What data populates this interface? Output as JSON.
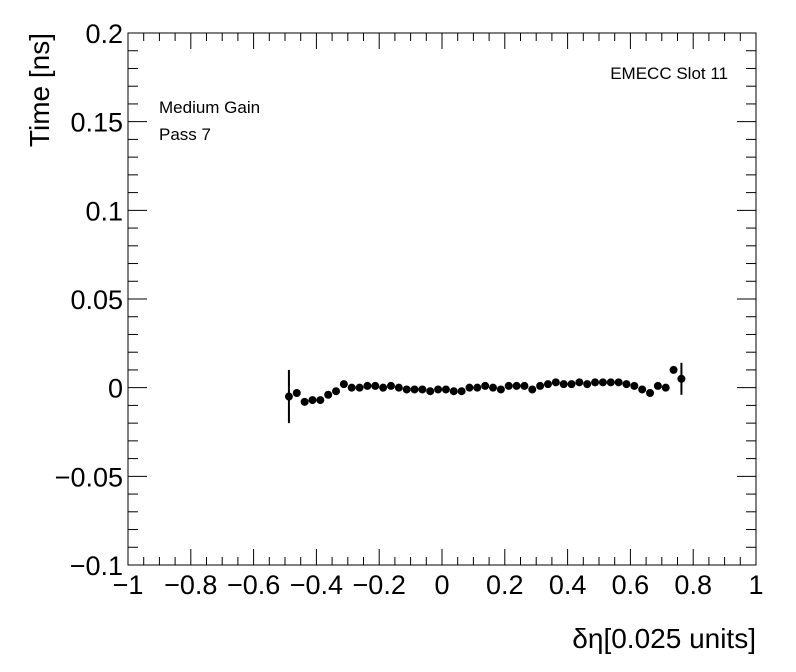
{
  "chart_data": {
    "type": "scatter",
    "xlabel": "δη[0.025 units]",
    "ylabel": "Time [ns]",
    "xlim": [
      -1,
      1
    ],
    "ylim": [
      -0.1,
      0.2
    ],
    "x_ticks": [
      -1,
      -0.8,
      -0.6,
      -0.4,
      -0.2,
      0,
      0.2,
      0.4,
      0.6,
      0.8,
      1
    ],
    "x_tick_labels": [
      "−1",
      "−0.8",
      "−0.6",
      "−0.4",
      "−0.2",
      "0",
      "0.2",
      "0.4",
      "0.6",
      "0.8",
      "1"
    ],
    "y_ticks": [
      -0.1,
      -0.05,
      0,
      0.05,
      0.1,
      0.15,
      0.2
    ],
    "y_tick_labels": [
      "−0.1",
      "−0.05",
      "0",
      "0.05",
      "0.1",
      "0.15",
      "0.2"
    ],
    "annotations": {
      "top_right": "EMECC Slot 11",
      "line1": "Medium Gain",
      "line2": "Pass 7"
    },
    "grid": false,
    "error_bars": true,
    "series": [
      {
        "points": [
          {
            "x": -0.4875,
            "y": -0.005,
            "err": 0.015
          },
          {
            "x": -0.4625,
            "y": -0.003,
            "err": 0.001
          },
          {
            "x": -0.4375,
            "y": -0.008,
            "err": 0.001
          },
          {
            "x": -0.4125,
            "y": -0.007,
            "err": 0.001
          },
          {
            "x": -0.3875,
            "y": -0.007,
            "err": 0.001
          },
          {
            "x": -0.3625,
            "y": -0.004,
            "err": 0.001
          },
          {
            "x": -0.3375,
            "y": -0.002,
            "err": 0.001
          },
          {
            "x": -0.3125,
            "y": 0.002,
            "err": 0.001
          },
          {
            "x": -0.2875,
            "y": 0.0,
            "err": 0.001
          },
          {
            "x": -0.2625,
            "y": 0.0,
            "err": 0.001
          },
          {
            "x": -0.2375,
            "y": 0.001,
            "err": 0.001
          },
          {
            "x": -0.2125,
            "y": 0.001,
            "err": 0.001
          },
          {
            "x": -0.1875,
            "y": 0.0,
            "err": 0.001
          },
          {
            "x": -0.1625,
            "y": 0.001,
            "err": 0.001
          },
          {
            "x": -0.1375,
            "y": 0.0,
            "err": 0.001
          },
          {
            "x": -0.1125,
            "y": -0.001,
            "err": 0.001
          },
          {
            "x": -0.0875,
            "y": -0.001,
            "err": 0.001
          },
          {
            "x": -0.0625,
            "y": -0.001,
            "err": 0.001
          },
          {
            "x": -0.0375,
            "y": -0.002,
            "err": 0.001
          },
          {
            "x": -0.0125,
            "y": -0.001,
            "err": 0.001
          },
          {
            "x": 0.0125,
            "y": -0.001,
            "err": 0.001
          },
          {
            "x": 0.0375,
            "y": -0.002,
            "err": 0.001
          },
          {
            "x": 0.0625,
            "y": -0.002,
            "err": 0.001
          },
          {
            "x": 0.0875,
            "y": 0.0,
            "err": 0.001
          },
          {
            "x": 0.1125,
            "y": 0.0,
            "err": 0.001
          },
          {
            "x": 0.1375,
            "y": 0.001,
            "err": 0.001
          },
          {
            "x": 0.1625,
            "y": 0.0,
            "err": 0.001
          },
          {
            "x": 0.1875,
            "y": -0.001,
            "err": 0.001
          },
          {
            "x": 0.2125,
            "y": 0.001,
            "err": 0.001
          },
          {
            "x": 0.2375,
            "y": 0.001,
            "err": 0.001
          },
          {
            "x": 0.2625,
            "y": 0.001,
            "err": 0.001
          },
          {
            "x": 0.2875,
            "y": -0.001,
            "err": 0.001
          },
          {
            "x": 0.3125,
            "y": 0.001,
            "err": 0.001
          },
          {
            "x": 0.3375,
            "y": 0.002,
            "err": 0.001
          },
          {
            "x": 0.3625,
            "y": 0.003,
            "err": 0.001
          },
          {
            "x": 0.3875,
            "y": 0.002,
            "err": 0.001
          },
          {
            "x": 0.4125,
            "y": 0.002,
            "err": 0.001
          },
          {
            "x": 0.4375,
            "y": 0.003,
            "err": 0.001
          },
          {
            "x": 0.4625,
            "y": 0.002,
            "err": 0.001
          },
          {
            "x": 0.4875,
            "y": 0.003,
            "err": 0.001
          },
          {
            "x": 0.5125,
            "y": 0.003,
            "err": 0.001
          },
          {
            "x": 0.5375,
            "y": 0.003,
            "err": 0.001
          },
          {
            "x": 0.5625,
            "y": 0.003,
            "err": 0.001
          },
          {
            "x": 0.5875,
            "y": 0.002,
            "err": 0.001
          },
          {
            "x": 0.6125,
            "y": 0.001,
            "err": 0.001
          },
          {
            "x": 0.6375,
            "y": -0.001,
            "err": 0.001
          },
          {
            "x": 0.6625,
            "y": -0.003,
            "err": 0.001
          },
          {
            "x": 0.6875,
            "y": 0.001,
            "err": 0.001
          },
          {
            "x": 0.7125,
            "y": 0.0,
            "err": 0.001
          },
          {
            "x": 0.7375,
            "y": 0.01,
            "err": 0.001
          },
          {
            "x": 0.7625,
            "y": 0.005,
            "err": 0.009
          }
        ]
      }
    ],
    "colors": {
      "marker": "#000000",
      "axis": "#000000",
      "background": "#ffffff"
    }
  }
}
